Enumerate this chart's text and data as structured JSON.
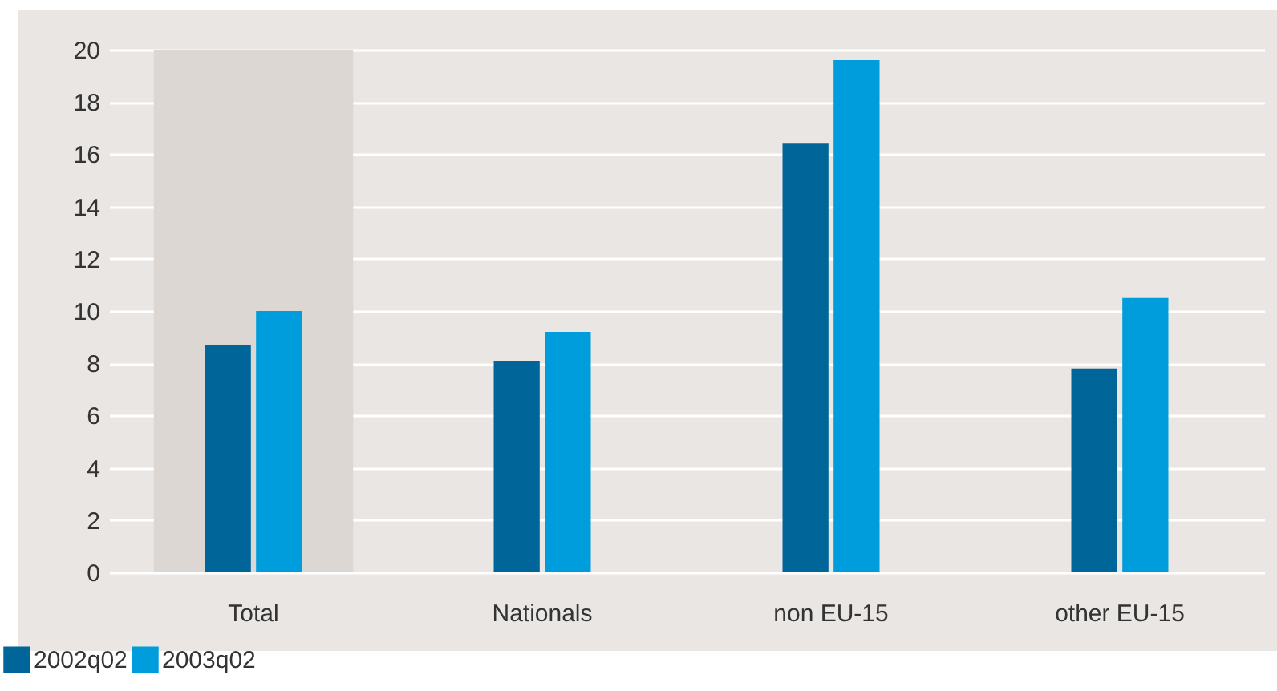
{
  "chart_data": {
    "type": "bar",
    "categories": [
      "Total",
      "Nationals",
      "non EU-15",
      "other EU-15"
    ],
    "series": [
      {
        "name": "2002q02",
        "color": "#00669a",
        "values": [
          8.7,
          8.1,
          16.4,
          7.8
        ]
      },
      {
        "name": "2003q02",
        "color": "#009ddc",
        "values": [
          10.0,
          9.2,
          19.6,
          10.5
        ]
      }
    ],
    "ylim": [
      0,
      20
    ],
    "yticks": [
      0,
      2,
      4,
      6,
      8,
      10,
      12,
      14,
      16,
      18,
      20
    ],
    "grid": "y",
    "legend": "bottom left",
    "bands": [
      {
        "axis": "x",
        "from": "Total",
        "to": "Total",
        "color": "#dcd7d3"
      }
    ]
  }
}
